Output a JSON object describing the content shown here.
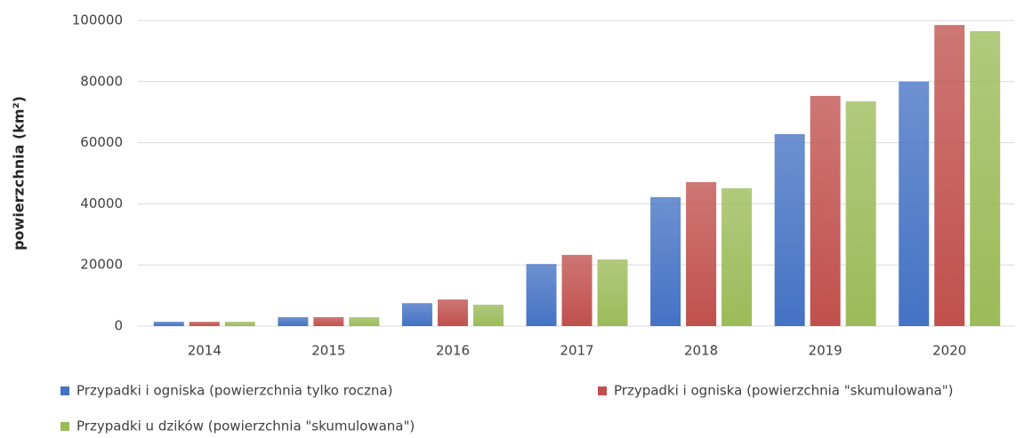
{
  "chart_data": {
    "type": "bar",
    "y_label": "powierzchnia (km²)",
    "categories": [
      "2014",
      "2015",
      "2016",
      "2017",
      "2018",
      "2019",
      "2020"
    ],
    "series": [
      {
        "name": "Przypadki i ogniska (powierzchnia tylko roczna)",
        "color": "#4472c4",
        "values": [
          1400,
          2900,
          7500,
          20300,
          42200,
          62800,
          80000
        ]
      },
      {
        "name": "Przypadki i ogniska (powierzchnia \"skumulowana\")",
        "color": "#c0504d",
        "values": [
          1400,
          2900,
          8700,
          23300,
          47100,
          75300,
          98500
        ]
      },
      {
        "name": "Przypadki u dzików (powierzchnia \"skumulowana\")",
        "color": "#9bbb59",
        "values": [
          1400,
          2900,
          7000,
          21800,
          45100,
          73500,
          96500
        ]
      }
    ],
    "ylim": [
      0,
      100000
    ],
    "yticks": [
      0,
      20000,
      40000,
      60000,
      80000,
      100000
    ],
    "grid": true
  }
}
